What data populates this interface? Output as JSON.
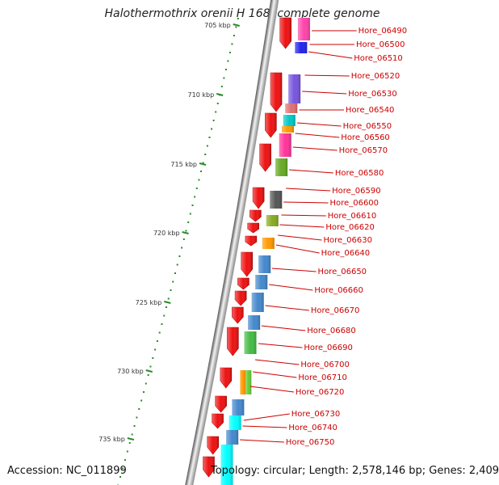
{
  "title": "Halothermothrix orenii H 168, complete genome",
  "footer": {
    "accession": "Accession: NC_011899",
    "topology": "Topology: circular; Length: 2,578,146 bp; Genes: 2,409"
  },
  "scale_labels": [
    "705 kbp",
    "710 kbp",
    "715 kbp",
    "720 kbp",
    "725 kbp",
    "730 kbp",
    "735 kbp"
  ],
  "gene_labels": [
    "Hore_06490",
    "Hore_06500",
    "Hore_06510",
    "Hore_06520",
    "Hore_06530",
    "Hore_06540",
    "Hore_06550",
    "Hore_06560",
    "Hore_06570",
    "Hore_06580",
    "Hore_06590",
    "Hore_06600",
    "Hore_06610",
    "Hore_06620",
    "Hore_06630",
    "Hore_06640",
    "Hore_06650",
    "Hore_06660",
    "Hore_06670",
    "Hore_06680",
    "Hore_06690",
    "Hore_06700",
    "Hore_06710",
    "Hore_06720",
    "Hore_06730",
    "Hore_06740",
    "Hore_06750"
  ],
  "colors": {
    "cds": "#ee1111",
    "backbone": "#777777",
    "scale_tick": "#2a8a2a",
    "label": "#cc0000"
  },
  "feature_colors": [
    "#ff44aa",
    "#2222ee",
    "#7755dd",
    "#e07070",
    "#00c8c8",
    "#ff9900",
    "#ff3399",
    "#66aa22",
    "#555555",
    "#88aa22",
    "#ff9900",
    "#4488cc",
    "#4488cc",
    "#4488cc",
    "#4488cc",
    "#44bb44",
    "#ff9900",
    "#66cc33",
    "#4488cc",
    "#00ffff",
    "#4488cc",
    "#00ffff"
  ]
}
